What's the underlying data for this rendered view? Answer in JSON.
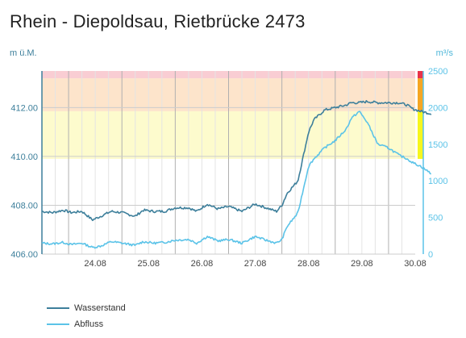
{
  "title": "Rhein - Diepoldsau, Rietbrücke 2473",
  "axes": {
    "left_unit": "m ü.M.",
    "right_unit": "m³/s",
    "left_ticks": [
      "412.00",
      "410.00",
      "408.00",
      "406.00"
    ],
    "right_ticks": [
      "2500",
      "2000",
      "1500",
      "1000",
      "500",
      "0"
    ],
    "x_ticks": [
      "24.08",
      "25.08",
      "26.08",
      "27.08",
      "28.08",
      "29.08",
      "30.08"
    ]
  },
  "legend": [
    {
      "label": "Wasserstand",
      "color": "#3d7f9b"
    },
    {
      "label": "Abfluss",
      "color": "#5bc3e8"
    }
  ],
  "colors": {
    "level_red": "#f9cdd3",
    "level_orange": "#fde4cb",
    "level_yellow": "#fdfbcd",
    "scale_red": "#e8334a",
    "scale_orange": "#f5a623",
    "scale_yellow": "#f6f61e",
    "grid": "#cccccc",
    "left_axis": "#3d7f9b",
    "right_axis": "#5bc3e8"
  },
  "chart_data": {
    "type": "line",
    "title": "Rhein - Diepoldsau, Rietbrücke 2473",
    "x_unit": "date (August)",
    "xlim": [
      "23.08 12:00",
      "30.08 12:00"
    ],
    "y_left": {
      "label": "m ü.M.",
      "ylim": [
        406.0,
        413.5
      ]
    },
    "y_right": {
      "label": "m³/s",
      "ylim": [
        0,
        2500
      ]
    },
    "hazard_bands": [
      {
        "name": "red",
        "axis": "right",
        "from": 2400,
        "to": 2500
      },
      {
        "name": "orange",
        "axis": "right",
        "from": 1950,
        "to": 2400
      },
      {
        "name": "yellow",
        "axis": "right",
        "from": 1300,
        "to": 1950
      }
    ],
    "series": [
      {
        "name": "Wasserstand",
        "axis": "left",
        "x_days": [
          0,
          0.2,
          0.4,
          0.55,
          0.75,
          0.95,
          1.1,
          1.3,
          1.5,
          1.75,
          1.9,
          2.1,
          2.3,
          2.5,
          2.75,
          2.9,
          3.1,
          3.3,
          3.5,
          3.75,
          4.0,
          4.2,
          4.4,
          4.5,
          4.6,
          4.8,
          5.0,
          5.1,
          5.3,
          5.5,
          5.7,
          5.8,
          5.95,
          6.1,
          6.3,
          6.5,
          6.7,
          6.85,
          6.95,
          7.1,
          7.2,
          7.3
        ],
        "values": [
          407.75,
          407.7,
          407.8,
          407.7,
          407.75,
          407.4,
          407.55,
          407.75,
          407.7,
          407.55,
          407.8,
          407.75,
          407.75,
          407.9,
          407.9,
          407.75,
          408.05,
          407.85,
          407.95,
          407.75,
          408.05,
          407.9,
          407.75,
          408.0,
          408.5,
          409.0,
          411.0,
          411.5,
          411.9,
          412.0,
          412.1,
          412.2,
          412.2,
          412.25,
          412.2,
          412.2,
          412.2,
          412.1,
          411.95,
          411.85,
          411.8,
          411.75
        ]
      },
      {
        "name": "Abfluss",
        "axis": "right",
        "x_days": [
          0,
          0.2,
          0.4,
          0.55,
          0.75,
          0.95,
          1.1,
          1.3,
          1.5,
          1.75,
          1.9,
          2.1,
          2.3,
          2.5,
          2.75,
          2.9,
          3.1,
          3.3,
          3.5,
          3.75,
          4.0,
          4.2,
          4.4,
          4.5,
          4.6,
          4.8,
          5.0,
          5.1,
          5.3,
          5.5,
          5.7,
          5.8,
          5.95,
          6.1,
          6.3,
          6.5,
          6.7,
          6.85,
          6.95,
          7.1,
          7.2,
          7.3
        ],
        "values": [
          150,
          140,
          160,
          130,
          150,
          90,
          110,
          170,
          150,
          120,
          170,
          150,
          160,
          190,
          200,
          150,
          240,
          180,
          200,
          150,
          240,
          190,
          150,
          200,
          380,
          560,
          1200,
          1300,
          1450,
          1550,
          1700,
          1850,
          1950,
          1800,
          1500,
          1450,
          1350,
          1300,
          1250,
          1200,
          1150,
          1100
        ]
      }
    ]
  }
}
